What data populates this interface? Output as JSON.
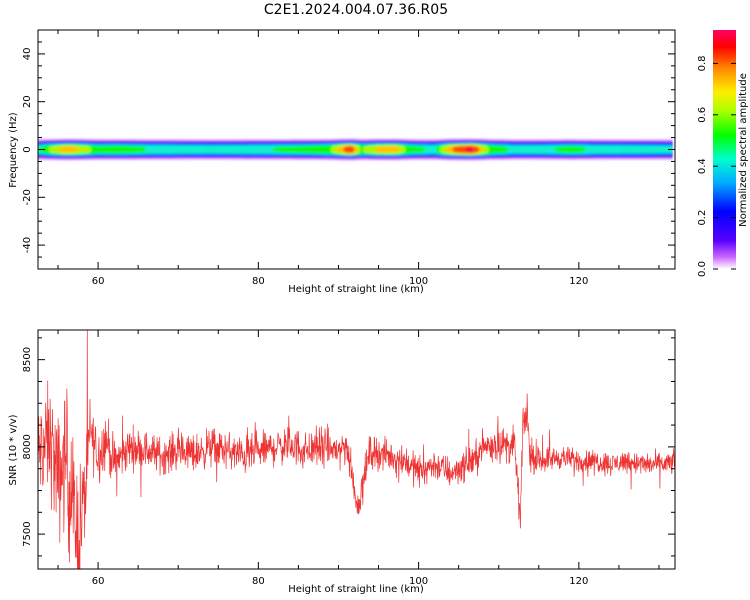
{
  "title": "C2E1.2024.004.07.36.R05",
  "chart_data": [
    {
      "type": "heatmap",
      "xlabel": "Height of straight line (km)",
      "ylabel": "Frequency (Hz)",
      "xlim": [
        52.5,
        132
      ],
      "ylim": [
        -50,
        50
      ],
      "xticks": [
        60,
        80,
        100,
        120
      ],
      "yticks": [
        -40,
        -20,
        0,
        20,
        40
      ],
      "colorbar": {
        "label": "Normalized spectral amplitude",
        "range": [
          0,
          0.93
        ],
        "ticks": [
          0.0,
          0.2,
          0.4,
          0.6,
          0.8
        ],
        "tick_labels": [
          "0.0",
          "0.2",
          "0.4",
          "0.6",
          "0.8"
        ]
      },
      "ridge": [
        {
          "x": 52.5,
          "amp": 0.5
        },
        {
          "x": 54,
          "amp": 0.62
        },
        {
          "x": 56,
          "amp": 0.78
        },
        {
          "x": 58,
          "amp": 0.7
        },
        {
          "x": 60,
          "amp": 0.55
        },
        {
          "x": 62,
          "amp": 0.58
        },
        {
          "x": 66,
          "amp": 0.52
        },
        {
          "x": 70,
          "amp": 0.5
        },
        {
          "x": 74,
          "amp": 0.48
        },
        {
          "x": 78,
          "amp": 0.5
        },
        {
          "x": 82,
          "amp": 0.52
        },
        {
          "x": 86,
          "amp": 0.55
        },
        {
          "x": 89,
          "amp": 0.62
        },
        {
          "x": 91.5,
          "amp": 0.9
        },
        {
          "x": 93,
          "amp": 0.6
        },
        {
          "x": 95,
          "amp": 0.75
        },
        {
          "x": 97,
          "amp": 0.78
        },
        {
          "x": 99,
          "amp": 0.55
        },
        {
          "x": 102,
          "amp": 0.5
        },
        {
          "x": 104,
          "amp": 0.8
        },
        {
          "x": 106.5,
          "amp": 0.93
        },
        {
          "x": 109,
          "amp": 0.6
        },
        {
          "x": 112,
          "amp": 0.48
        },
        {
          "x": 116,
          "amp": 0.5
        },
        {
          "x": 119,
          "amp": 0.55
        },
        {
          "x": 122,
          "amp": 0.5
        },
        {
          "x": 126,
          "amp": 0.48
        },
        {
          "x": 129,
          "amp": 0.47
        },
        {
          "x": 132,
          "amp": 0.45
        }
      ]
    },
    {
      "type": "line",
      "xlabel": "Height of straight line (km)",
      "ylabel": "SNR (10 * v/v)",
      "xlim": [
        52.5,
        132
      ],
      "ylim": [
        7300,
        8670
      ],
      "xticks": [
        60,
        80,
        100,
        120
      ],
      "yticks": [
        7500,
        8000,
        8500
      ],
      "grid": false,
      "color": "#ee3333",
      "series": [
        {
          "x": [
            52.5,
            54,
            55,
            56,
            57,
            57.5,
            58,
            58.5,
            59,
            60,
            61,
            62,
            64,
            66,
            68,
            70,
            72,
            74,
            76,
            78,
            80,
            82,
            84,
            86,
            88,
            90,
            91,
            92,
            92.5,
            93,
            94,
            96,
            98,
            100,
            101,
            102,
            104,
            106,
            107,
            108,
            110,
            112,
            112.7,
            113,
            113.5,
            114,
            116,
            118,
            120,
            122,
            124,
            126,
            128,
            130,
            132
          ],
          "y": [
            7950,
            8050,
            7800,
            7950,
            7600,
            7500,
            7600,
            7800,
            8100,
            7950,
            8050,
            7900,
            8000,
            7980,
            7950,
            7980,
            7960,
            8000,
            7980,
            7950,
            7970,
            8000,
            8010,
            7980,
            8000,
            7980,
            8010,
            7750,
            7650,
            7800,
            7980,
            7950,
            7930,
            7860,
            7880,
            7900,
            7850,
            7900,
            7930,
            8000,
            8020,
            8000,
            7580,
            8100,
            8200,
            7920,
            7930,
            7940,
            7920,
            7920,
            7900,
            7920,
            7900,
            7900,
            7910
          ],
          "envelope": [
            700,
            800,
            900,
            1000,
            1000,
            950,
            900,
            700,
            450,
            420,
            380,
            320,
            290,
            270,
            260,
            260,
            260,
            270,
            260,
            270,
            250,
            260,
            260,
            260,
            270,
            260,
            260,
            220,
            200,
            240,
            240,
            220,
            220,
            230,
            220,
            220,
            220,
            220,
            220,
            240,
            250,
            260,
            200,
            260,
            250,
            180,
            170,
            160,
            160,
            160,
            160,
            160,
            160,
            160,
            160
          ]
        }
      ]
    }
  ]
}
